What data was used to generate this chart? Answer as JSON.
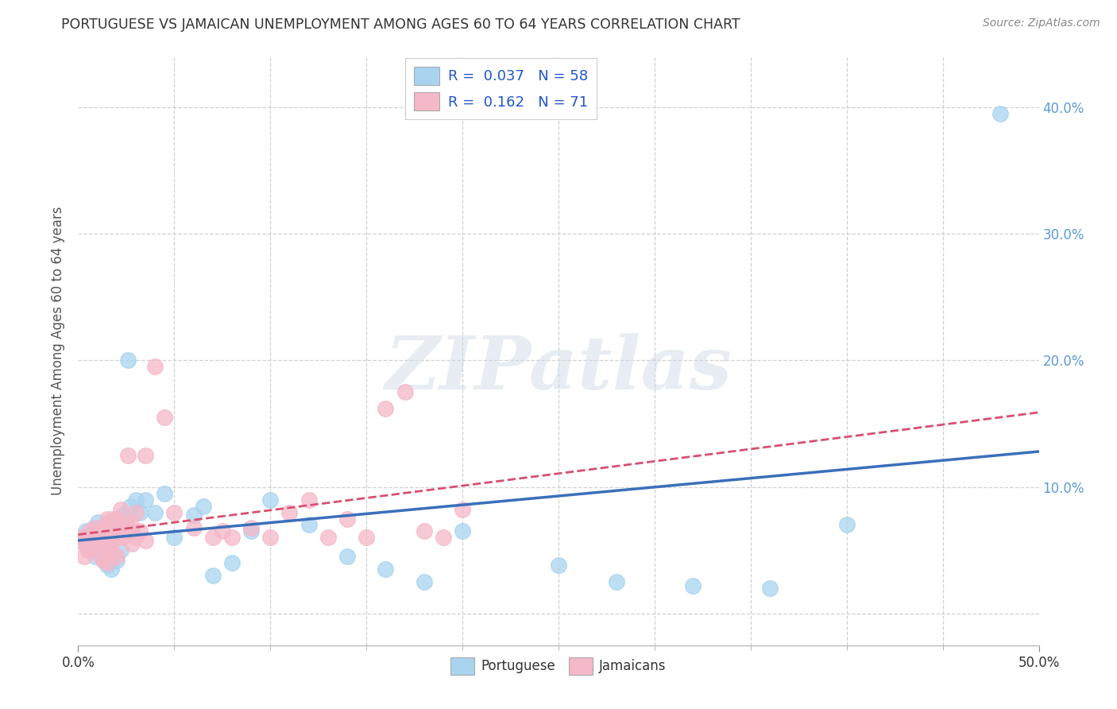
{
  "title": "PORTUGUESE VS JAMAICAN UNEMPLOYMENT AMONG AGES 60 TO 64 YEARS CORRELATION CHART",
  "source": "Source: ZipAtlas.com",
  "ylabel": "Unemployment Among Ages 60 to 64 years",
  "legend_label_portuguese": "Portuguese",
  "legend_label_jamaicans": "Jamaicans",
  "portuguese_color": "#a8d4f0",
  "jamaican_color": "#f5b8c8",
  "trend_portuguese_color": "#3a6fba",
  "trend_jamaican_color": "#d94f70",
  "xlim": [
    0.0,
    0.5
  ],
  "ylim": [
    -0.025,
    0.44
  ],
  "ytick_values": [
    0.0,
    0.1,
    0.2,
    0.3,
    0.4
  ],
  "ytick_labels": [
    "",
    "10.0%",
    "20.0%",
    "30.0%",
    "40.0%"
  ],
  "xtick_minor": [
    0.05,
    0.1,
    0.15,
    0.2,
    0.25,
    0.3,
    0.35,
    0.4,
    0.45
  ],
  "grid_color": "#cccccc",
  "background_color": "#ffffff",
  "title_color": "#333333",
  "axis_label_color": "#555555",
  "watermark_text": "ZIPatlas",
  "portuguese_x": [
    0.002,
    0.003,
    0.004,
    0.005,
    0.006,
    0.007,
    0.008,
    0.009,
    0.01,
    0.01,
    0.011,
    0.012,
    0.012,
    0.013,
    0.013,
    0.014,
    0.015,
    0.015,
    0.016,
    0.016,
    0.017,
    0.017,
    0.018,
    0.018,
    0.019,
    0.02,
    0.02,
    0.021,
    0.022,
    0.023,
    0.024,
    0.025,
    0.026,
    0.027,
    0.028,
    0.03,
    0.032,
    0.035,
    0.04,
    0.045,
    0.05,
    0.06,
    0.065,
    0.07,
    0.08,
    0.09,
    0.1,
    0.12,
    0.14,
    0.16,
    0.18,
    0.2,
    0.25,
    0.28,
    0.32,
    0.36,
    0.4,
    0.48
  ],
  "portuguese_y": [
    0.06,
    0.055,
    0.065,
    0.058,
    0.062,
    0.05,
    0.068,
    0.045,
    0.072,
    0.058,
    0.055,
    0.06,
    0.048,
    0.065,
    0.042,
    0.058,
    0.07,
    0.038,
    0.072,
    0.055,
    0.065,
    0.035,
    0.068,
    0.045,
    0.062,
    0.075,
    0.042,
    0.068,
    0.05,
    0.078,
    0.065,
    0.075,
    0.2,
    0.085,
    0.065,
    0.09,
    0.08,
    0.09,
    0.08,
    0.095,
    0.06,
    0.078,
    0.085,
    0.03,
    0.04,
    0.065,
    0.09,
    0.07,
    0.045,
    0.035,
    0.025,
    0.065,
    0.038,
    0.025,
    0.022,
    0.02,
    0.07,
    0.395
  ],
  "jamaican_x": [
    0.002,
    0.003,
    0.004,
    0.005,
    0.006,
    0.007,
    0.008,
    0.009,
    0.01,
    0.01,
    0.011,
    0.012,
    0.012,
    0.013,
    0.013,
    0.014,
    0.015,
    0.015,
    0.016,
    0.016,
    0.017,
    0.018,
    0.018,
    0.019,
    0.02,
    0.02,
    0.021,
    0.022,
    0.023,
    0.024,
    0.025,
    0.026,
    0.027,
    0.028,
    0.03,
    0.032,
    0.035,
    0.04,
    0.045,
    0.05,
    0.06,
    0.07,
    0.075,
    0.08,
    0.09,
    0.1,
    0.11,
    0.12,
    0.13,
    0.14,
    0.15,
    0.16,
    0.17,
    0.18,
    0.19,
    0.2,
    0.003,
    0.005,
    0.007,
    0.009,
    0.011,
    0.013,
    0.015,
    0.017,
    0.019,
    0.021,
    0.023,
    0.025,
    0.028,
    0.03,
    0.035
  ],
  "jamaican_y": [
    0.06,
    0.055,
    0.06,
    0.058,
    0.065,
    0.052,
    0.06,
    0.068,
    0.055,
    0.062,
    0.058,
    0.065,
    0.045,
    0.06,
    0.042,
    0.058,
    0.075,
    0.04,
    0.07,
    0.052,
    0.065,
    0.075,
    0.048,
    0.062,
    0.075,
    0.045,
    0.07,
    0.082,
    0.06,
    0.065,
    0.068,
    0.125,
    0.072,
    0.065,
    0.08,
    0.065,
    0.125,
    0.195,
    0.155,
    0.08,
    0.068,
    0.06,
    0.065,
    0.06,
    0.068,
    0.06,
    0.08,
    0.09,
    0.06,
    0.075,
    0.06,
    0.162,
    0.175,
    0.065,
    0.06,
    0.082,
    0.045,
    0.05,
    0.058,
    0.062,
    0.055,
    0.065,
    0.058,
    0.062,
    0.068,
    0.06,
    0.06,
    0.07,
    0.055,
    0.06,
    0.058
  ]
}
